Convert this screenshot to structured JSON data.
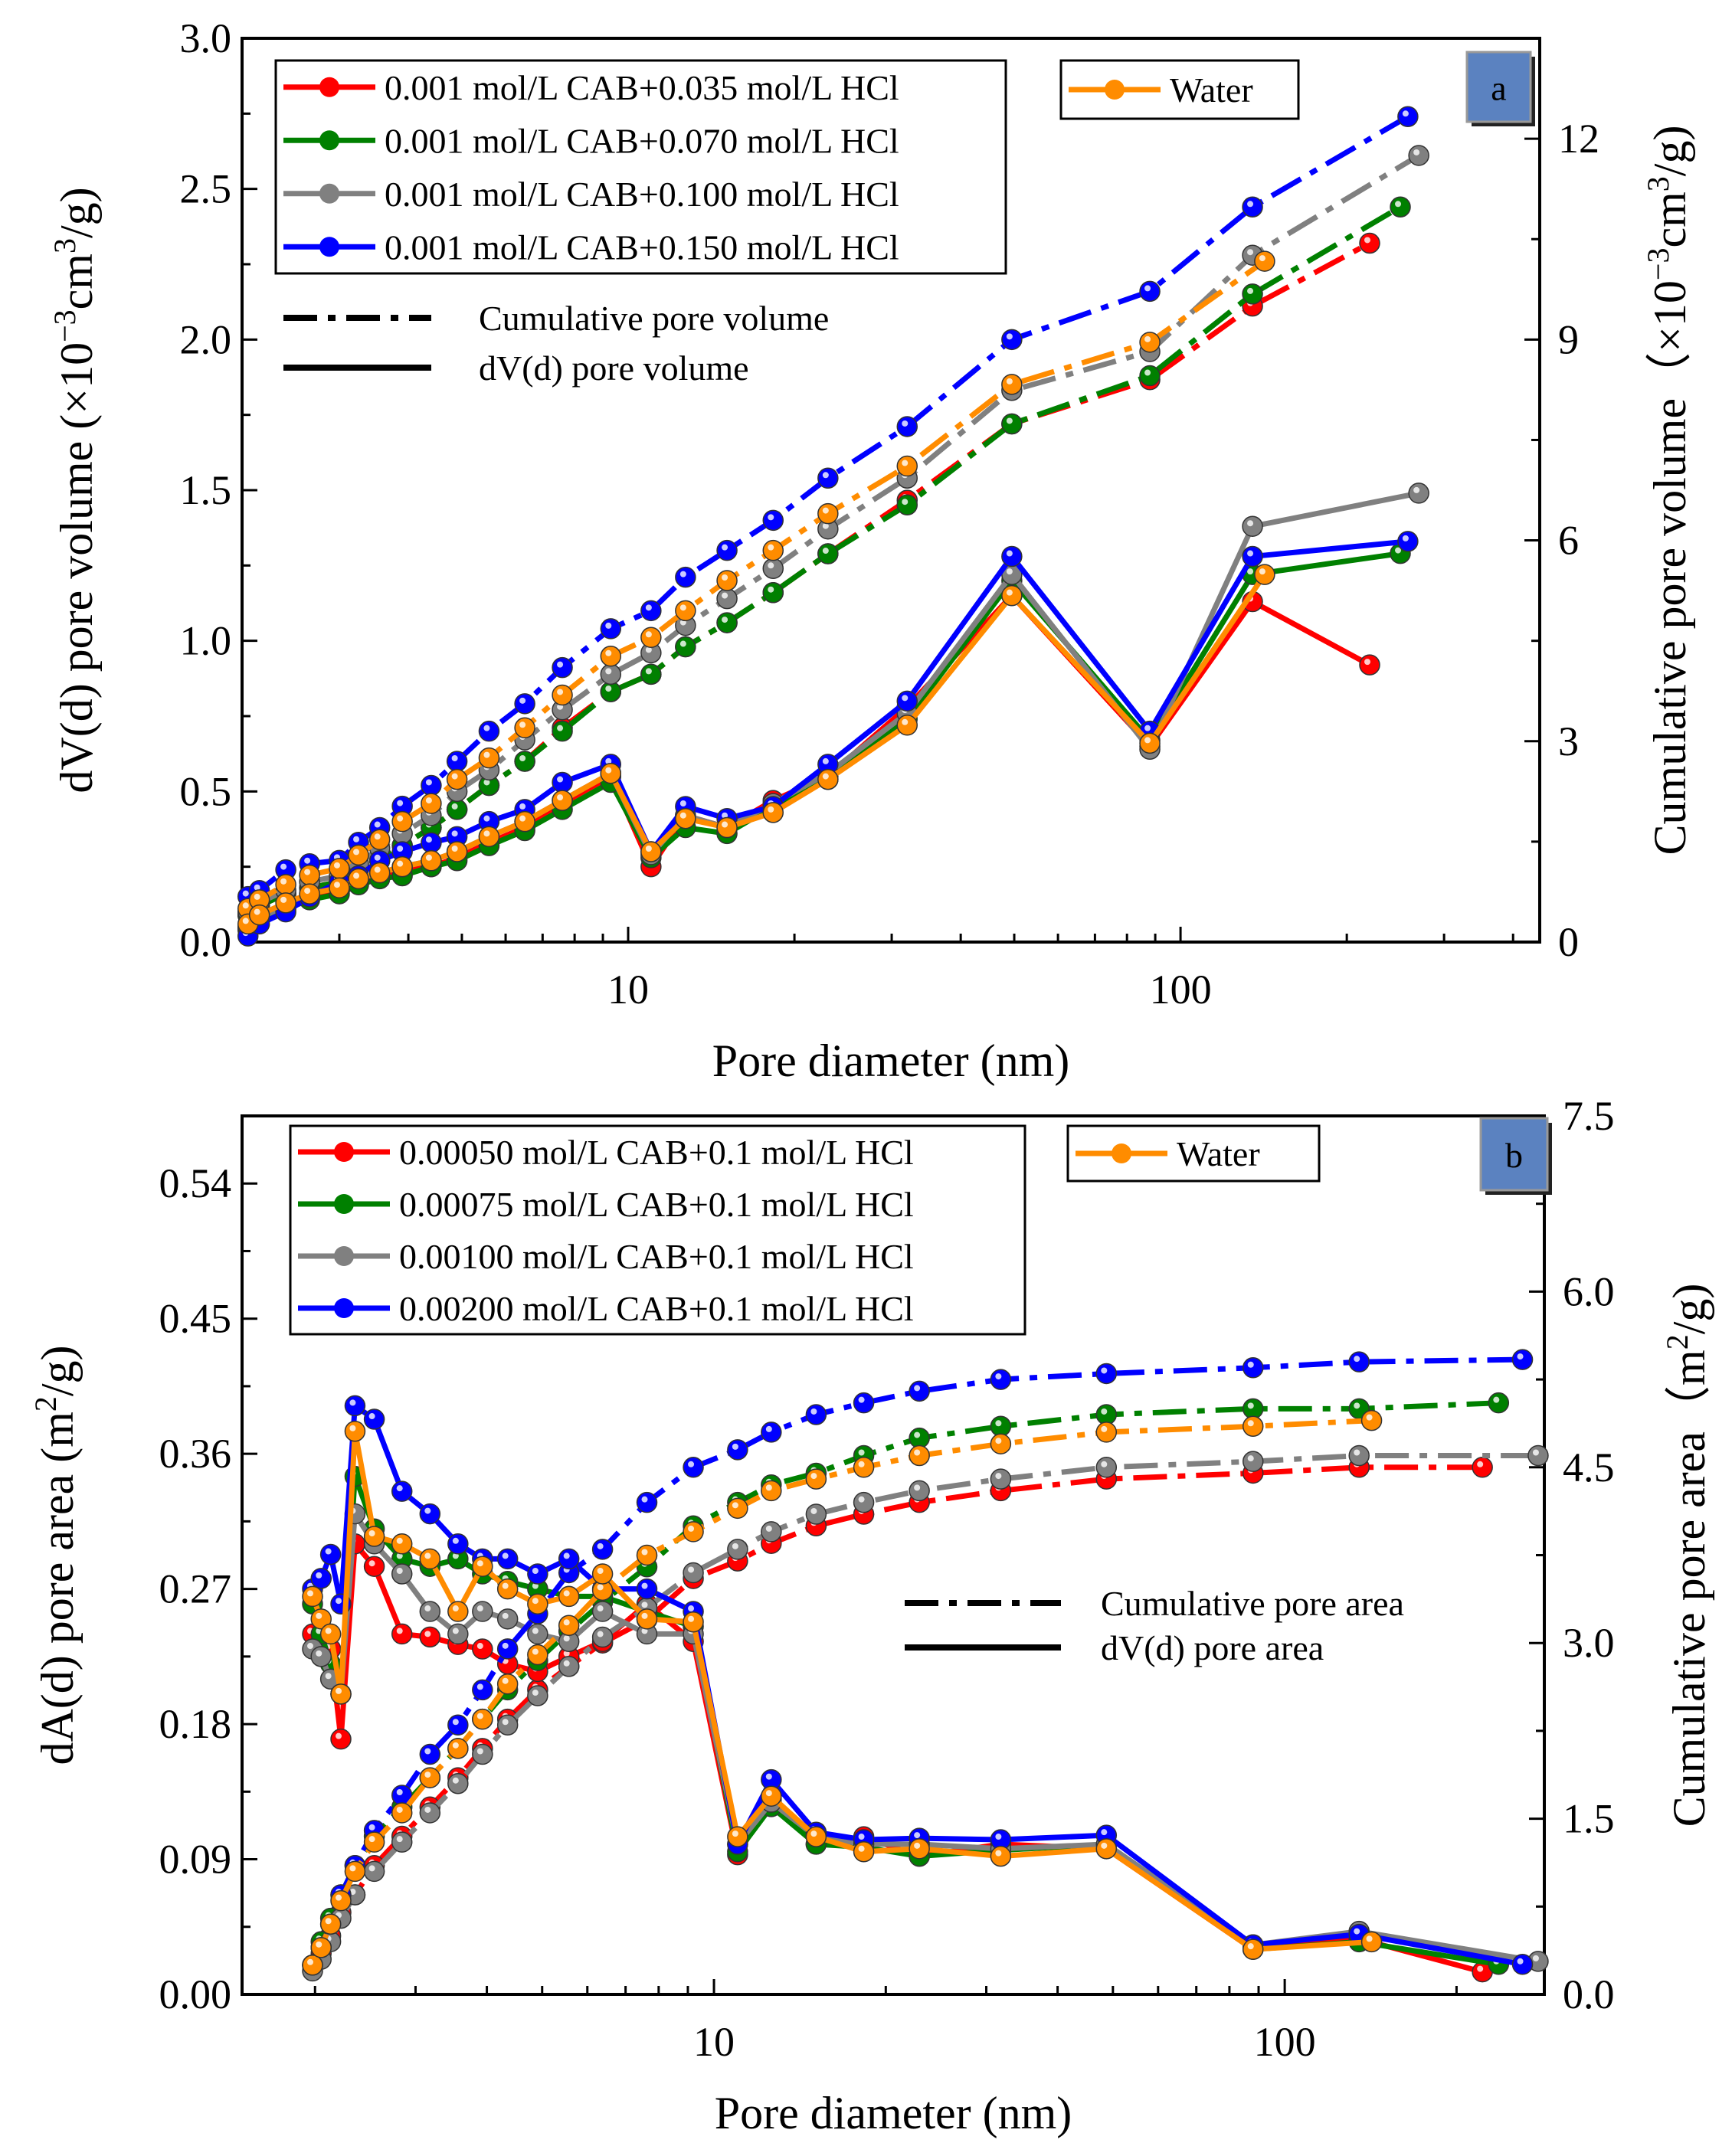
{
  "chart_data": [
    {
      "panel_label": "a",
      "type": "line",
      "xlabel": "Pore diameter (nm)",
      "ylabel_parts": [
        "dV(d) pore volume (×10",
        "−3",
        "cm",
        "3",
        "/g)"
      ],
      "y2label_parts": [
        "Cumulative pore volume（×10",
        "−3",
        "cm",
        "3",
        "/g)"
      ],
      "xscale": "log",
      "xlim": [
        2.0,
        447
      ],
      "ylim": [
        0,
        3.0
      ],
      "y2lim": [
        0,
        13.5
      ],
      "xticks": [
        10,
        100
      ],
      "xtick_labels": [
        "10",
        "100"
      ],
      "yticks": [
        0,
        0.5,
        1.0,
        1.5,
        2.0,
        2.5,
        3.0
      ],
      "ytick_labels": [
        "0.0",
        "0.5",
        "1.0",
        "1.5",
        "2.0",
        "2.5",
        "3.0"
      ],
      "y2ticks": [
        0,
        3,
        6,
        9,
        12
      ],
      "y2tick_labels": [
        "0",
        "3",
        "6",
        "9",
        "12"
      ],
      "style_legend": [
        {
          "style": "dashdot",
          "label": "Cumulative pore volume"
        },
        {
          "style": "solid",
          "label": "dV(d) pore volume"
        }
      ],
      "x": [
        2.05,
        2.15,
        2.4,
        2.65,
        3.0,
        3.25,
        3.55,
        3.9,
        4.4,
        4.9,
        5.6,
        6.5,
        7.6,
        9.3,
        11.0,
        12.7,
        15.1,
        18.3,
        23,
        32,
        49.5,
        88,
        135,
        250
      ],
      "series": [
        {
          "name": "0.001 mol/L CAB+0.035 mol/L HCl",
          "color": "#ff0000",
          "last_x": 220,
          "dv": [
            0.05,
            0.08,
            0.12,
            0.15,
            0.17,
            0.2,
            0.22,
            0.24,
            0.25,
            0.28,
            0.33,
            0.38,
            0.46,
            0.55,
            0.25,
            0.42,
            0.38,
            0.47,
            0.55,
            0.78,
            1.15,
            0.65,
            1.13,
            0.92
          ],
          "cum": [
            0.4,
            0.54,
            0.72,
            0.81,
            0.9,
            0.99,
            1.22,
            1.44,
            1.71,
            1.98,
            2.34,
            2.7,
            3.2,
            3.74,
            4.0,
            4.41,
            4.77,
            5.22,
            5.8,
            6.6,
            7.74,
            8.4,
            9.5,
            10.44
          ]
        },
        {
          "name": "0.001 mol/L CAB+0.070 mol/L HCl",
          "color": "#008000",
          "dv": [
            0.04,
            0.07,
            0.11,
            0.14,
            0.16,
            0.19,
            0.21,
            0.22,
            0.25,
            0.27,
            0.32,
            0.37,
            0.44,
            0.53,
            0.28,
            0.38,
            0.36,
            0.45,
            0.54,
            0.74,
            1.2,
            0.67,
            1.22,
            1.29
          ],
          "cum": [
            0.4,
            0.54,
            0.72,
            0.81,
            0.9,
            0.99,
            1.22,
            1.44,
            1.71,
            1.98,
            2.34,
            2.7,
            3.15,
            3.74,
            4.0,
            4.41,
            4.77,
            5.22,
            5.8,
            6.53,
            7.74,
            8.46,
            9.68,
            10.98
          ]
        },
        {
          "name": "0.001 mol/L CAB+0.100 mol/L HCl",
          "color": "#808080",
          "last_x": 270,
          "dv": [
            0.05,
            0.08,
            0.12,
            0.16,
            0.18,
            0.21,
            0.23,
            0.25,
            0.27,
            0.3,
            0.35,
            0.4,
            0.47,
            0.56,
            0.29,
            0.42,
            0.38,
            0.46,
            0.56,
            0.76,
            1.22,
            0.64,
            1.38,
            1.49
          ],
          "cum": [
            0.45,
            0.59,
            0.77,
            0.9,
            0.99,
            1.17,
            1.4,
            1.62,
            1.89,
            2.25,
            2.57,
            3.02,
            3.47,
            4.0,
            4.32,
            4.73,
            5.13,
            5.58,
            6.17,
            6.93,
            8.24,
            8.82,
            10.26,
            11.75
          ]
        },
        {
          "name": "0.001 mol/L CAB+0.150 mol/L HCl",
          "color": "#0000ff",
          "last_x": 258,
          "dv": [
            0.02,
            0.06,
            0.1,
            0.15,
            0.2,
            0.22,
            0.27,
            0.3,
            0.33,
            0.35,
            0.4,
            0.44,
            0.53,
            0.59,
            0.3,
            0.45,
            0.41,
            0.45,
            0.59,
            0.8,
            1.28,
            0.7,
            1.28,
            1.33
          ],
          "cum": [
            0.68,
            0.77,
            1.08,
            1.17,
            1.22,
            1.49,
            1.71,
            2.03,
            2.34,
            2.7,
            3.15,
            3.56,
            4.1,
            4.68,
            4.95,
            5.45,
            5.85,
            6.3,
            6.93,
            7.7,
            9.0,
            9.72,
            10.98,
            12.33
          ]
        },
        {
          "name": "Water",
          "color": "#ff8c00",
          "last_x": 142,
          "dv": [
            0.06,
            0.09,
            0.13,
            0.16,
            0.18,
            0.21,
            0.23,
            0.25,
            0.27,
            0.3,
            0.35,
            0.4,
            0.47,
            0.56,
            0.3,
            0.41,
            0.38,
            0.43,
            0.54,
            0.72,
            1.15,
            0.66,
            1.22
          ],
          "cum": [
            0.5,
            0.63,
            0.86,
            1.0,
            1.1,
            1.3,
            1.53,
            1.8,
            2.07,
            2.43,
            2.75,
            3.2,
            3.69,
            4.27,
            4.55,
            4.95,
            5.4,
            5.85,
            6.4,
            7.11,
            8.33,
            8.96,
            10.17
          ]
        }
      ]
    },
    {
      "panel_label": "b",
      "type": "line",
      "xlabel": "Pore diameter (nm)",
      "ylabel_parts": [
        "dA(d) pore area (m",
        "2",
        "/g)"
      ],
      "y2label_parts": [
        "Cumulative pore area（m",
        "2",
        "/g)"
      ],
      "xscale": "log",
      "xlim": [
        1.49,
        285
      ],
      "ylim": [
        0,
        0.585
      ],
      "y2lim": [
        0,
        7.5
      ],
      "xticks": [
        10,
        100
      ],
      "xtick_labels": [
        "10",
        "100"
      ],
      "yticks": [
        0,
        0.09,
        0.18,
        0.27,
        0.36,
        0.45,
        0.54
      ],
      "ytick_labels": [
        "0.00",
        "0.09",
        "0.18",
        "0.27",
        "0.36",
        "0.45",
        "0.54"
      ],
      "y2ticks": [
        0,
        1.5,
        3.0,
        4.5,
        6.0,
        7.5
      ],
      "y2tick_labels": [
        "0.0",
        "1.5",
        "3.0",
        "4.5",
        "6.0",
        "7.5"
      ],
      "style_legend": [
        {
          "style": "dashdot",
          "label": "Cumulative pore area"
        },
        {
          "style": "solid",
          "label": "dV(d) pore area"
        }
      ],
      "x": [
        1.98,
        2.05,
        2.13,
        2.22,
        2.35,
        2.54,
        2.84,
        3.18,
        3.56,
        3.93,
        4.35,
        4.91,
        5.57,
        6.38,
        7.63,
        9.2,
        11,
        12.6,
        15.1,
        18.3,
        22.9,
        31.8,
        48.7,
        88,
        135,
        250
      ],
      "series": [
        {
          "name": "0.00050 mol/L CAB+0.1 mol/L HCl",
          "color": "#ff0000",
          "last_x": 222,
          "dv": [
            0.24,
            0.235,
            0.23,
            0.17,
            0.3,
            0.285,
            0.24,
            0.238,
            0.233,
            0.23,
            0.22,
            0.215,
            0.225,
            0.235,
            0.26,
            0.235,
            0.093,
            0.13,
            0.1,
            0.105,
            0.092,
            0.1,
            0.097,
            0.03,
            0.037,
            0.015
          ],
          "cum": [
            0.25,
            0.35,
            0.5,
            0.7,
            0.85,
            1.1,
            1.35,
            1.6,
            1.85,
            2.1,
            2.35,
            2.6,
            2.8,
            3.0,
            3.2,
            3.55,
            3.7,
            3.85,
            4.0,
            4.1,
            4.2,
            4.3,
            4.4,
            4.45,
            4.5,
            4.5
          ]
        },
        {
          "name": "0.00075 mol/L CAB+0.1 mol/L HCl",
          "color": "#008000",
          "last_x": 237,
          "dv": [
            0.26,
            0.24,
            0.22,
            0.2,
            0.345,
            0.31,
            0.29,
            0.285,
            0.29,
            0.28,
            0.275,
            0.27,
            0.265,
            0.265,
            0.255,
            0.245,
            0.095,
            0.125,
            0.1,
            0.098,
            0.092,
            0.096,
            0.1,
            0.03,
            0.035,
            0.02
          ],
          "cum": [
            0.25,
            0.45,
            0.65,
            0.85,
            1.1,
            1.35,
            1.6,
            1.85,
            2.1,
            2.35,
            2.6,
            2.85,
            3.1,
            3.35,
            3.65,
            4.0,
            4.2,
            4.35,
            4.45,
            4.6,
            4.75,
            4.85,
            4.95,
            5.0,
            5.0,
            5.05
          ]
        },
        {
          "name": "0.00100 mol/L CAB+0.1 mol/L HCl",
          "color": "#808080",
          "last_x": 278,
          "dv": [
            0.23,
            0.225,
            0.21,
            0.2,
            0.32,
            0.3,
            0.28,
            0.255,
            0.24,
            0.255,
            0.25,
            0.24,
            0.235,
            0.255,
            0.24,
            0.24,
            0.1,
            0.128,
            0.105,
            0.1,
            0.1,
            0.097,
            0.1,
            0.033,
            0.042,
            0.022
          ],
          "cum": [
            0.2,
            0.3,
            0.45,
            0.65,
            0.85,
            1.05,
            1.3,
            1.55,
            1.8,
            2.05,
            2.3,
            2.55,
            2.8,
            3.05,
            3.3,
            3.6,
            3.8,
            3.95,
            4.1,
            4.2,
            4.3,
            4.4,
            4.5,
            4.55,
            4.6,
            4.6
          ]
        },
        {
          "name": "0.00200 mol/L CAB+0.1 mol/L HCl",
          "color": "#0000ff",
          "last_x": 261,
          "dv": [
            0.27,
            0.277,
            0.293,
            0.26,
            0.392,
            0.383,
            0.335,
            0.32,
            0.3,
            0.29,
            0.29,
            0.28,
            0.29,
            0.27,
            0.27,
            0.255,
            0.1,
            0.143,
            0.108,
            0.103,
            0.104,
            0.103,
            0.106,
            0.033,
            0.04,
            0.02
          ],
          "cum": [
            0.25,
            0.4,
            0.6,
            0.85,
            1.1,
            1.4,
            1.7,
            2.05,
            2.3,
            2.6,
            2.95,
            3.25,
            3.6,
            3.8,
            4.2,
            4.5,
            4.65,
            4.8,
            4.95,
            5.05,
            5.15,
            5.25,
            5.3,
            5.35,
            5.4,
            5.42
          ]
        },
        {
          "name": "Water",
          "color": "#ff8c00",
          "last_x": 142,
          "dv": [
            0.265,
            0.25,
            0.24,
            0.2,
            0.375,
            0.305,
            0.3,
            0.29,
            0.255,
            0.285,
            0.27,
            0.26,
            0.265,
            0.28,
            0.25,
            0.248,
            0.105,
            0.132,
            0.105,
            0.095,
            0.097,
            0.092,
            0.097,
            0.03,
            0.035
          ],
          "cum": [
            0.25,
            0.4,
            0.6,
            0.8,
            1.05,
            1.3,
            1.55,
            1.85,
            2.1,
            2.35,
            2.65,
            2.9,
            3.15,
            3.45,
            3.75,
            3.95,
            4.15,
            4.3,
            4.4,
            4.5,
            4.6,
            4.7,
            4.8,
            4.85,
            4.9
          ]
        }
      ]
    }
  ]
}
